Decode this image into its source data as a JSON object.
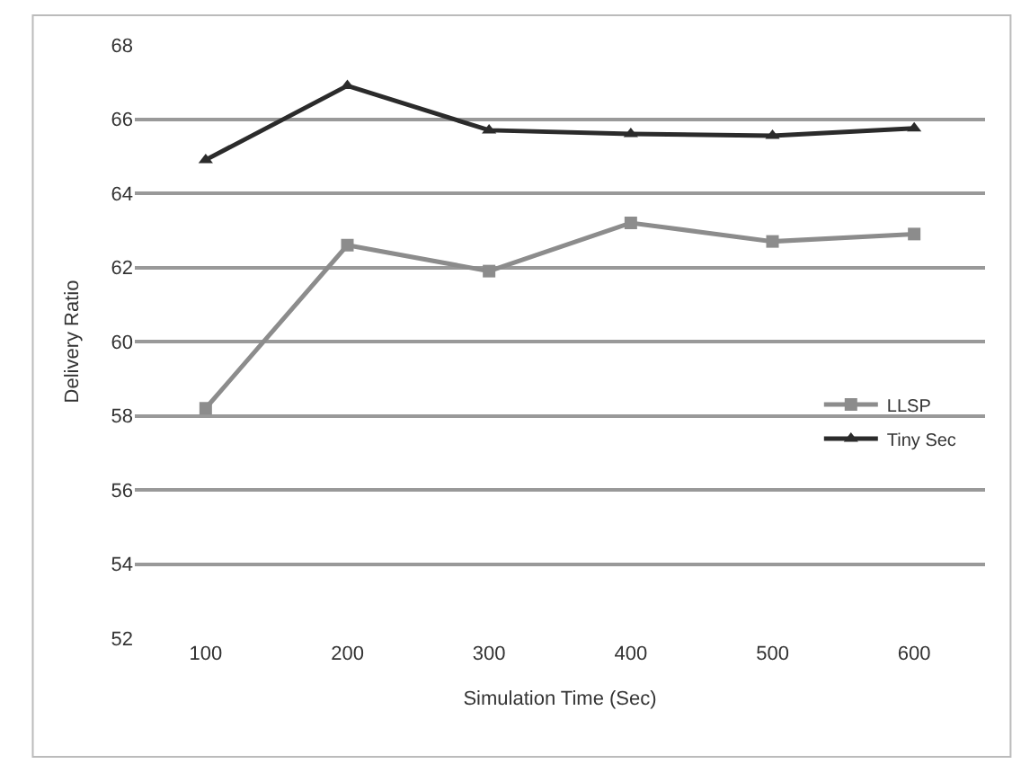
{
  "chart_data": {
    "type": "line",
    "xlabel": "Simulation Time (Sec)",
    "ylabel": "Delivery Ratio",
    "categories": [
      "100",
      "200",
      "300",
      "400",
      "500",
      "600"
    ],
    "series": [
      {
        "name": "LLSP",
        "color": "#8c8c8c",
        "marker": "square",
        "values": [
          58.2,
          62.6,
          61.9,
          63.2,
          62.7,
          62.9
        ]
      },
      {
        "name": "Tiny Sec",
        "color": "#2b2b2b",
        "marker": "triangle",
        "values": [
          64.9,
          66.9,
          65.7,
          65.6,
          65.55,
          65.75
        ]
      }
    ],
    "ylim": [
      52,
      68
    ],
    "yticks": [
      52,
      54,
      56,
      58,
      60,
      62,
      64,
      66,
      68
    ],
    "grid": "y",
    "legend": "right",
    "line_style": "solid"
  }
}
